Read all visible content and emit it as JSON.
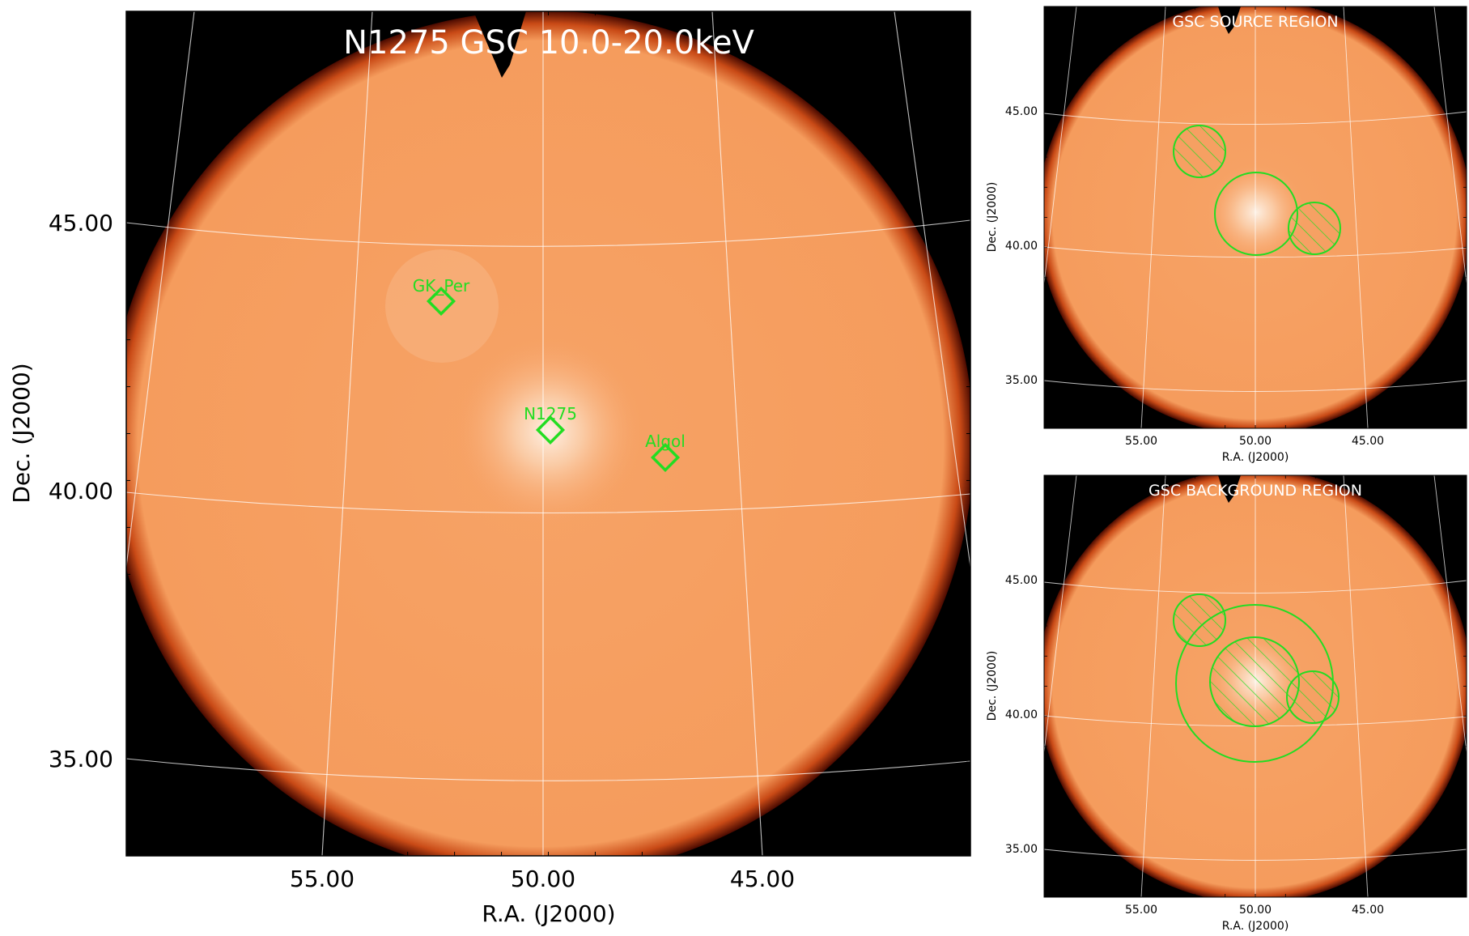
{
  "colors": {
    "background_sky": "#000000",
    "detector_fill": "#f6a064",
    "detector_hot": "#fbe6d6",
    "edge": "#8b1a00",
    "region": "#22dd22",
    "grid": "#ffffff",
    "title_text": "#ffffff"
  },
  "main_panel": {
    "title": "N1275 GSC 10.0-20.0keV",
    "xlabel": "R.A. (J2000)",
    "ylabel": "Dec. (J2000)",
    "x_ticks": [
      "55.00",
      "50.00",
      "45.00"
    ],
    "y_ticks": [
      "45.00",
      "40.00",
      "35.00"
    ],
    "sources": [
      {
        "name": "GK_Per",
        "label": "GK_Per",
        "ra": 52.8,
        "dec": 43.9
      },
      {
        "name": "N1275",
        "label": "N1275",
        "ra": 49.95,
        "dec": 41.5
      },
      {
        "name": "Algol",
        "label": "Algol",
        "ra": 47.0,
        "dec": 40.95
      }
    ]
  },
  "source_panel": {
    "title": "GSC SOURCE REGION",
    "xlabel": "R.A. (J2000)",
    "ylabel": "Dec. (J2000)",
    "x_ticks": [
      "55.00",
      "50.00",
      "45.00"
    ],
    "y_ticks": [
      "45.00",
      "40.00",
      "35.00"
    ]
  },
  "background_panel": {
    "title": "GSC BACKGROUND REGION",
    "xlabel": "R.A. (J2000)",
    "ylabel": "Dec. (J2000)",
    "x_ticks": [
      "55.00",
      "50.00",
      "45.00"
    ],
    "y_ticks": [
      "45.00",
      "40.00",
      "35.00"
    ]
  }
}
